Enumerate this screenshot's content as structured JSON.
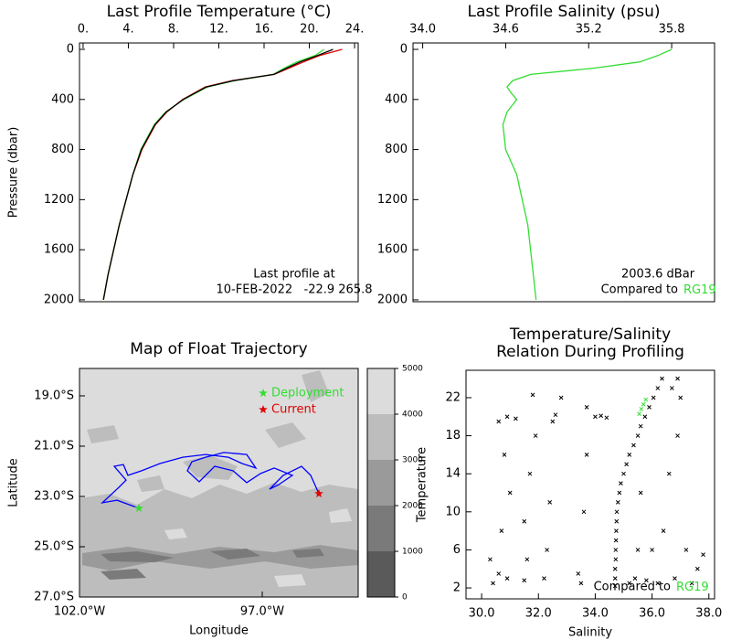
{
  "chart_data": [
    {
      "type": "profile",
      "title": "Last Profile Temperature (°C)",
      "y_label": "Pressure (dbar)",
      "pressure": [
        0,
        50,
        100,
        150,
        200,
        250,
        300,
        400,
        500,
        600,
        800,
        1000,
        1200,
        1400,
        1600,
        1800,
        2000
      ],
      "series": [
        {
          "color": "#e00000",
          "values": [
            22.9,
            20.9,
            19.5,
            18.2,
            16.9,
            13.2,
            10.8,
            8.8,
            7.4,
            6.4,
            5.2,
            4.4,
            3.8,
            3.2,
            2.7,
            2.2,
            1.8
          ]
        },
        {
          "color": "#33dd33",
          "values": [
            21.3,
            20.5,
            18.9,
            17.8,
            16.8,
            13.4,
            11.0,
            8.9,
            7.3,
            6.3,
            5.1,
            4.4,
            3.8,
            3.2,
            2.7,
            2.2,
            1.8
          ]
        },
        {
          "color": "#000000",
          "values": [
            22.1,
            20.7,
            19.2,
            18.0,
            16.85,
            13.3,
            10.9,
            8.85,
            7.35,
            6.35,
            5.15,
            4.4,
            3.8,
            3.2,
            2.7,
            2.2,
            1.8
          ]
        }
      ],
      "xlim": [
        -0.32,
        24.32
      ],
      "xticks": [
        {
          "value": 0,
          "label": "0."
        },
        {
          "value": 4,
          "label": "4."
        },
        {
          "value": 8,
          "label": "8."
        },
        {
          "value": 12,
          "label": "12."
        },
        {
          "value": 16,
          "label": "16."
        },
        {
          "value": 20,
          "label": "20."
        },
        {
          "value": 24,
          "label": "24."
        }
      ],
      "ylim": [
        2015,
        -51
      ],
      "yticks": [
        0,
        400,
        800,
        1200,
        1600,
        2000
      ],
      "note_lines": [
        "Last profile at",
        "10-FEB-2022   -22.9 265.8"
      ]
    },
    {
      "type": "profile",
      "title": "Last Profile Salinity (psu)",
      "pressure": [
        0,
        50,
        100,
        150,
        200,
        250,
        300,
        350,
        400,
        500,
        600,
        800,
        1000,
        1400,
        2000
      ],
      "series": [
        {
          "color": "#33dd33",
          "values": [
            35.8,
            35.7,
            35.57,
            35.24,
            34.78,
            34.65,
            34.61,
            34.64,
            34.68,
            34.61,
            34.58,
            34.6,
            34.68,
            34.76,
            34.82
          ]
        }
      ],
      "xlim": [
        33.93,
        36.11
      ],
      "xticks": [
        {
          "value": 34.0,
          "label": "34.0"
        },
        {
          "value": 34.6,
          "label": "34.6"
        },
        {
          "value": 35.2,
          "label": "35.2"
        },
        {
          "value": 35.8,
          "label": "35.8"
        }
      ],
      "ylim": [
        2015,
        -51
      ],
      "yticks": [
        0,
        400,
        800,
        1200,
        1600,
        2000
      ],
      "note_lines": [
        "2003.6 dBar",
        "Compared to"
      ],
      "note_highlight": "RG19",
      "note_highlight_color": "#33dd33"
    },
    {
      "type": "trajectory",
      "title": "Map of Float Trajectory",
      "x_label": "Longitude",
      "y_label": "Latitude",
      "series": [
        {
          "color": "#0000ff",
          "x": [
            -100.375,
            -100.975,
            -101.375,
            -100.925,
            -100.725,
            -101.05,
            -100.8,
            -100.675,
            -100.3,
            -99.8,
            -99.175,
            -98.55,
            -97.925,
            -97.55,
            -97.175,
            -97.425,
            -98.05,
            -98.55,
            -98.925,
            -99.05,
            -98.725,
            -98.3,
            -97.8,
            -97.425,
            -97.05,
            -96.675,
            -96.175,
            -96.55,
            -96.8,
            -96.425,
            -95.925,
            -95.675,
            -95.45
          ],
          "values": [
            -23.47,
            -23.15,
            -23.25,
            -22.64,
            -22.35,
            -21.8,
            -21.73,
            -22.16,
            -21.98,
            -21.69,
            -21.44,
            -21.33,
            -21.44,
            -21.69,
            -21.87,
            -21.33,
            -21.25,
            -21.44,
            -21.62,
            -21.98,
            -22.42,
            -21.8,
            -21.98,
            -22.45,
            -22.09,
            -21.87,
            -22.16,
            -22.53,
            -22.71,
            -22.16,
            -21.8,
            -22.16,
            -22.89
          ]
        }
      ],
      "markers": [
        {
          "name": "Deployment",
          "color": "#33dd33",
          "x": -100.375,
          "y": -23.47
        },
        {
          "name": "Current",
          "color": "#e00000",
          "x": -95.45,
          "y": -22.89
        }
      ],
      "xlim": [
        -102.0,
        -94.375
      ],
      "xticks": [
        {
          "value": -102.0,
          "label": "102.0°W"
        },
        {
          "value": -97.0,
          "label": "97.0°W"
        }
      ],
      "ylim": [
        -27.0,
        -17.91
      ],
      "yticks": [
        {
          "value": -19.0,
          "label": "19.0°S"
        },
        {
          "value": -21.0,
          "label": "21.0°S"
        },
        {
          "value": -23.0,
          "label": "23.0°S"
        },
        {
          "value": -25.0,
          "label": "25.0°S"
        },
        {
          "value": -27.0,
          "label": "27.0°S"
        }
      ],
      "colorbar": {
        "ticks": [
          0,
          1000,
          2000,
          3000,
          4000,
          5000
        ],
        "colors": [
          "#5a5a5a",
          "#7a7a7a",
          "#9a9a9a",
          "#bdbdbd",
          "#dcdcdc"
        ]
      }
    },
    {
      "type": "scatter",
      "title": [
        "Temperature/Salinity",
        "Relation During Profiling"
      ],
      "x_label": "Salinity",
      "y_label": "Temperature",
      "series": [
        {
          "color": "#000000",
          "x": [
            34.7,
            34.7,
            34.7,
            34.72,
            34.72,
            34.73,
            34.74,
            34.75,
            34.76,
            34.8,
            34.85,
            34.9,
            35.0,
            35.1,
            35.2,
            35.35,
            35.5,
            35.6,
            35.75,
            35.9,
            36.05,
            36.2,
            36.35,
            30.4,
            30.6,
            30.3,
            30.9,
            30.7,
            31.0,
            30.8,
            30.6,
            30.9,
            31.2,
            31.5,
            31.6,
            31.5,
            31.7,
            31.9,
            31.8,
            32.2,
            32.3,
            32.4,
            32.5,
            32.6,
            32.8,
            33.4,
            33.5,
            33.6,
            33.7,
            33.7,
            34.0,
            34.2,
            34.4,
            35.2,
            35.4,
            35.5,
            35.6,
            35.8,
            36.0,
            36.2,
            36.4,
            36.6,
            36.8,
            36.9,
            37.0,
            37.2,
            37.4,
            37.6,
            37.8,
            36.7,
            36.9
          ],
          "values": [
            2.2,
            3,
            4,
            5,
            6,
            7,
            8,
            9,
            10,
            11,
            12,
            13,
            14,
            15,
            16,
            17,
            18,
            19,
            20,
            21,
            22,
            23,
            24,
            2.5,
            3.5,
            5,
            3,
            8,
            12,
            16,
            19.5,
            20,
            19.8,
            2.8,
            5,
            9,
            14,
            18,
            22.3,
            3,
            6,
            11,
            19.5,
            20.2,
            22,
            3.5,
            2.5,
            10,
            16,
            21,
            20,
            20.1,
            19.9,
            2.5,
            3,
            6,
            12,
            2.8,
            6,
            2.5,
            8,
            14,
            3,
            18,
            22,
            6,
            2.5,
            4,
            5.5,
            23,
            24
          ]
        },
        {
          "color": "#33dd33",
          "x": [
            35.55,
            35.62,
            35.7,
            35.78
          ],
          "values": [
            20.3,
            20.8,
            21.3,
            21.8
          ]
        }
      ],
      "xlim": [
        29.45,
        38.2
      ],
      "xticks": [
        {
          "value": 30,
          "label": "30.0"
        },
        {
          "value": 32,
          "label": "32.0"
        },
        {
          "value": 34,
          "label": "34.0"
        },
        {
          "value": 36,
          "label": "36.0"
        },
        {
          "value": 38,
          "label": "38.0"
        }
      ],
      "ylim": [
        0.85,
        24.88
      ],
      "yticks": [
        2,
        6,
        10,
        14,
        18,
        22
      ],
      "note_lines": [
        "Compared to"
      ],
      "note_highlight": "RG19",
      "note_highlight_color": "#33dd33"
    }
  ]
}
